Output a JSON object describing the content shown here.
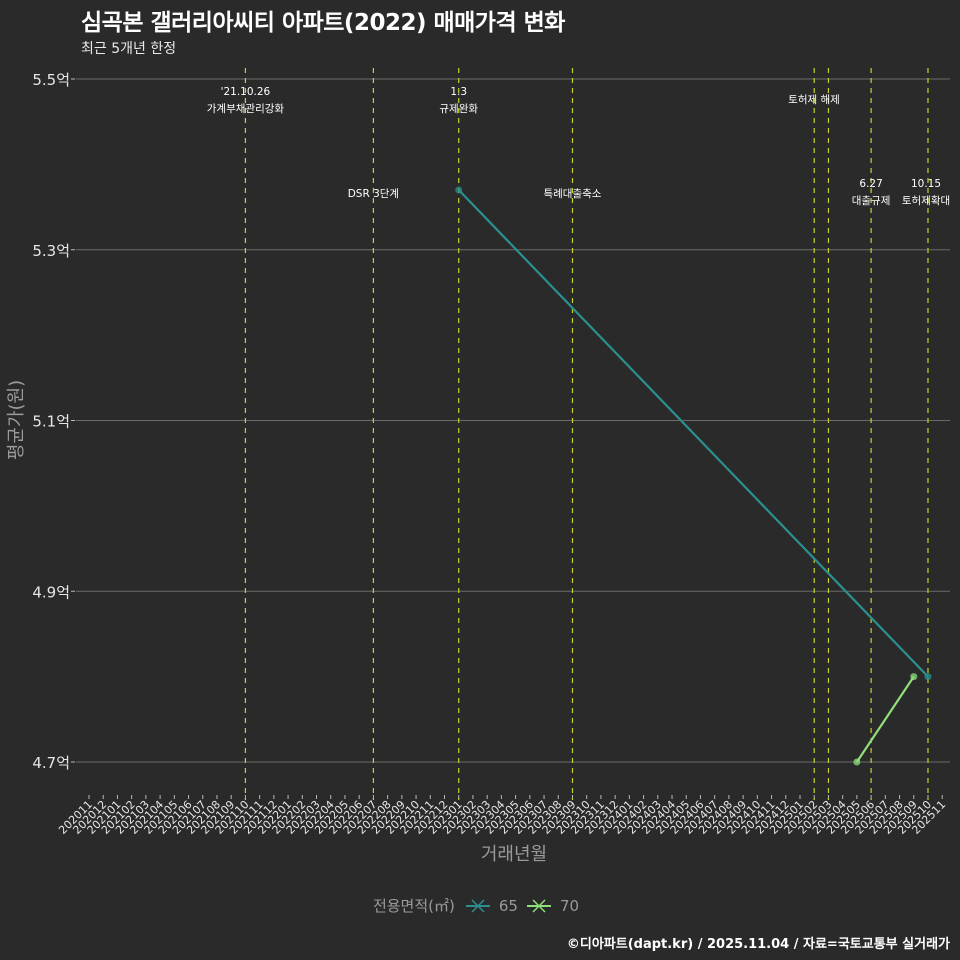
{
  "header": {
    "title": "심곡본 갤러리아씨티 아파트(2022) 매매가격 변화",
    "subtitle": "최근 5개년 한정"
  },
  "axes": {
    "xlabel": "거래년월",
    "ylabel": "평균가(원)"
  },
  "legend": {
    "title": "전용면적(㎡)",
    "items": [
      {
        "label": "65",
        "color": "#2a9090"
      },
      {
        "label": "70",
        "color": "#8ee07a"
      }
    ]
  },
  "footer": {
    "credit": "©디아파트(dapt.kr) / 2025.11.04 / 자료=국토교통부 실거래가"
  },
  "colors": {
    "background": "#2b2a2b",
    "grid": "#6a6a6a",
    "event_line": "#c8d22a",
    "series_65": "#2a9090",
    "series_70": "#8ee07a"
  },
  "chart_data": {
    "type": "line",
    "title": "심곡본 갤러리아씨티 아파트(2022) 매매가격 변화",
    "subtitle": "최근 5개년 한정",
    "xlabel": "거래년월",
    "ylabel": "평균가(원)",
    "y_unit": "억",
    "ylim": [
      4.7,
      5.5
    ],
    "y_ticks": [
      "4.7억",
      "4.9억",
      "5.1억",
      "5.3억",
      "5.5억"
    ],
    "y_tick_values": [
      4.7,
      4.9,
      5.1,
      5.3,
      5.5
    ],
    "grid": true,
    "legend_position": "bottom",
    "legend_title": "전용면적(㎡)",
    "categories": [
      "202011",
      "202012",
      "202101",
      "202102",
      "202103",
      "202104",
      "202105",
      "202106",
      "202107",
      "202108",
      "202109",
      "202110",
      "202111",
      "202112",
      "202201",
      "202202",
      "202203",
      "202204",
      "202205",
      "202206",
      "202207",
      "202208",
      "202209",
      "202210",
      "202211",
      "202212",
      "202301",
      "202302",
      "202303",
      "202304",
      "202305",
      "202306",
      "202307",
      "202308",
      "202309",
      "202310",
      "202311",
      "202312",
      "202401",
      "202402",
      "202403",
      "202404",
      "202405",
      "202406",
      "202407",
      "202408",
      "202409",
      "202410",
      "202411",
      "202412",
      "202501",
      "202502",
      "202503",
      "202504",
      "202505",
      "202506",
      "202507",
      "202508",
      "202509",
      "202510",
      "202511"
    ],
    "series": [
      {
        "name": "65",
        "color": "#2a9090",
        "points": [
          {
            "x": "202301",
            "y": 5.37
          },
          {
            "x": "202510",
            "y": 4.8
          }
        ]
      },
      {
        "name": "70",
        "color": "#8ee07a",
        "points": [
          {
            "x": "202505",
            "y": 4.7
          },
          {
            "x": "202509",
            "y": 4.8
          }
        ]
      }
    ],
    "annotations": [
      {
        "x": "202110",
        "lines": [
          "'21.10.26",
          "가계부채관리강화"
        ],
        "row": "top"
      },
      {
        "x": "202207",
        "lines": [
          "DSR 3단계"
        ],
        "row": "middle"
      },
      {
        "x": "202301",
        "lines": [
          "1.3",
          "규제완화"
        ],
        "row": "top"
      },
      {
        "x": "202309",
        "lines": [
          "특례대출축소"
        ],
        "row": "middle"
      },
      {
        "x": "202502",
        "lines": [],
        "row": "none"
      },
      {
        "x": "202503",
        "lines": [
          "토허제 해제"
        ],
        "row": "top"
      },
      {
        "x": "202506",
        "lines": [
          "6.27",
          "대출규제"
        ],
        "row": "middle"
      },
      {
        "x": "202510",
        "lines": [
          "10.15",
          "토허제확대"
        ],
        "row": "middle"
      }
    ]
  }
}
